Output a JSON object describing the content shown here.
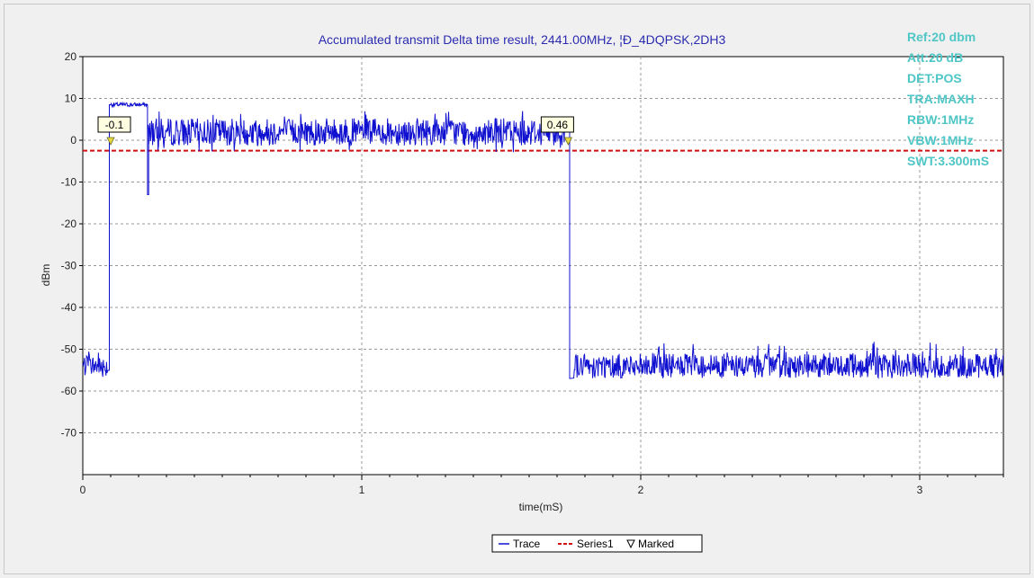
{
  "chart_data": {
    "type": "line",
    "title": "Accumulated transmit Delta time result, 2441.00MHz, ¦Ð_4DQPSK,2DH3",
    "xlabel": "time(mS)",
    "ylabel": "dBm",
    "xlim": [
      0,
      3.3
    ],
    "ylim": [
      -80,
      20
    ],
    "xticks": [
      0,
      1,
      2,
      3
    ],
    "xtick_labels": [
      "0",
      "1",
      "2",
      "3"
    ],
    "yticks": [
      20,
      10,
      0,
      -10,
      -20,
      -30,
      -40,
      -50,
      -60,
      -70
    ],
    "ytick_labels": [
      "20",
      "10",
      "0",
      "-10",
      "-20",
      "-30",
      "-40",
      "-50",
      "-60",
      "-70"
    ],
    "grid": true,
    "series": [
      {
        "name": "Trace",
        "color": "#1010d0",
        "segments": [
          {
            "x_start": 0.0,
            "x_end": 0.09,
            "level": -54,
            "noise_low": -57,
            "noise_high": -49
          },
          {
            "x_start": 0.1,
            "x_end": 0.23,
            "level": 8.5,
            "noise_low": 8,
            "noise_high": 9
          },
          {
            "x_start": 0.235,
            "x_end": 1.73,
            "level": 2,
            "noise_low": -3,
            "noise_high": 7
          },
          {
            "x_start": 1.76,
            "x_end": 3.3,
            "level": -54,
            "noise_low": -57,
            "noise_high": -48
          }
        ],
        "edges": [
          {
            "x": 0.095,
            "from": -55,
            "to": 8.5
          },
          {
            "x": 0.232,
            "from": 8.5,
            "to": -13
          },
          {
            "x": 0.236,
            "from": -13,
            "to": 3
          },
          {
            "x": 1.745,
            "from": 3,
            "to": -57
          }
        ]
      },
      {
        "name": "Series1",
        "color": "#d01010",
        "style": "dashed",
        "y": -2.5
      },
      {
        "name": "Marked",
        "color": "#e8d840",
        "points": [
          {
            "x": 0.1,
            "y": 0,
            "label": "-0.1"
          },
          {
            "x": 1.74,
            "y": 0,
            "label": "0.46"
          }
        ]
      }
    ],
    "legend_position": "bottom",
    "annotations": [
      "Ref:20 dbm",
      "Att:20 dB",
      "DET:POS",
      "TRA:MAXH",
      "RBW:1MHz",
      "VBW:1MHz",
      "SWT:3.300mS"
    ]
  },
  "legend": {
    "trace": "Trace",
    "series1": "Series1",
    "marked": "Marked"
  }
}
